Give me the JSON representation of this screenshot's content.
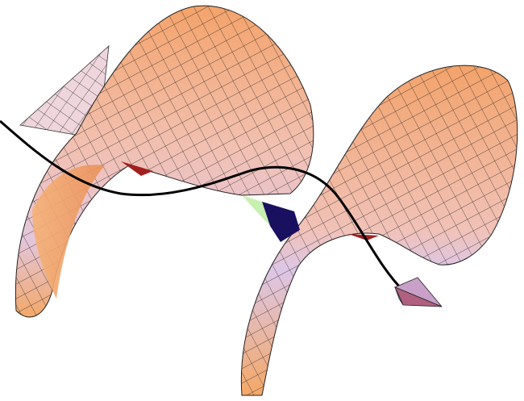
{
  "figure": {
    "background": "#ffffff",
    "surface_colors": {
      "orange": "#f4a36a",
      "peach": "#f7c49c",
      "pink": "#e9c4d2",
      "lavender": "#d6c6e8",
      "dark_red": "#a02020",
      "dark_blue": "#1a1060"
    },
    "mesh_color": "#2a2a2a",
    "curve_color": "#000000",
    "arrowhead_colors": [
      "#c8a0c8",
      "#a0b8e0",
      "#b06080"
    ]
  }
}
